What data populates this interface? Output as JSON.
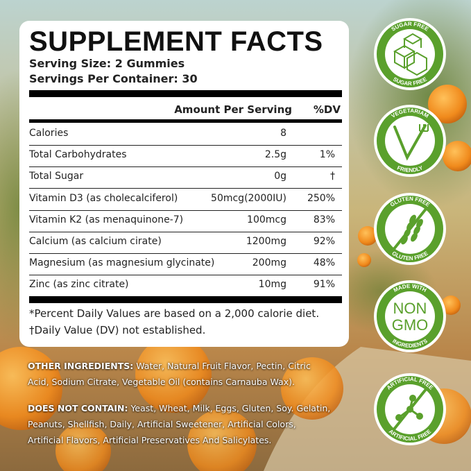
{
  "header": {
    "title": "SUPPLEMENT FACTS",
    "serving_size": "Serving Size: 2 Gummies",
    "servings_per_container": "Servings Per Container: 30"
  },
  "table": {
    "columns": [
      "Amount Per Serving",
      "%DV"
    ],
    "rows": [
      {
        "name": "Calories",
        "amount": "8"
      },
      {
        "name": "Total Carbohydrates",
        "amount": "2.5g",
        "dv": "1%"
      },
      {
        "name": "Total Sugar",
        "amount": "0g",
        "dv": "†"
      },
      {
        "name": "Vitamin D3 (as cholecalciferol)",
        "amount": "50mcg(2000IU)",
        "dv": "250%"
      },
      {
        "name": "Vitamin K2 (as menaquinone-7)",
        "amount": "100mcg",
        "dv": "83%"
      },
      {
        "name": "Calcium (as calcium cirate)",
        "amount": "1200mg",
        "dv": "92%"
      },
      {
        "name": "Magnesium (as magnesium glycinate)",
        "amount": "200mg",
        "dv": "48%"
      },
      {
        "name": "Zinc (as zinc citrate)",
        "amount": "10mg",
        "dv": "91%"
      }
    ]
  },
  "footnotes": [
    "*Percent Daily Values are based on a 2,000 calorie diet.",
    "†Daily Value (DV) not established."
  ],
  "other_ingredients": {
    "label": "OTHER INGREDIENTS:",
    "text": "Water, Natural Fruit Flavor, Pectin, Citric Acid, Sodium Citrate, Vegetable Oil (contains Carnauba Wax)."
  },
  "does_not_contain": {
    "label": "DOES NOT CONTAIN:",
    "text": "Yeast, Wheat, Milk, Eggs, Gluten, Soy. Gelatin, Peanuts, Shellfish, Daily, Artificial Sweetener, Artificial Colors, Artificial Flavors, Artificial Preservatives And Salicylates."
  },
  "badges": [
    {
      "top": "SUGAR FREE",
      "bottom": "SUGAR FREE"
    },
    {
      "top": "VEGETARIAM",
      "bottom": "FRIENDLY"
    },
    {
      "top": "GLUTEN FREE",
      "bottom": "GLUTEN FREE"
    },
    {
      "top": "MADE WITH",
      "center": [
        "NON",
        "GMO"
      ],
      "bottom": "INGREDIENTS"
    },
    {
      "top": "ARTIFICIAL FREE",
      "bottom": "ARTIFICIAL FREE"
    }
  ]
}
